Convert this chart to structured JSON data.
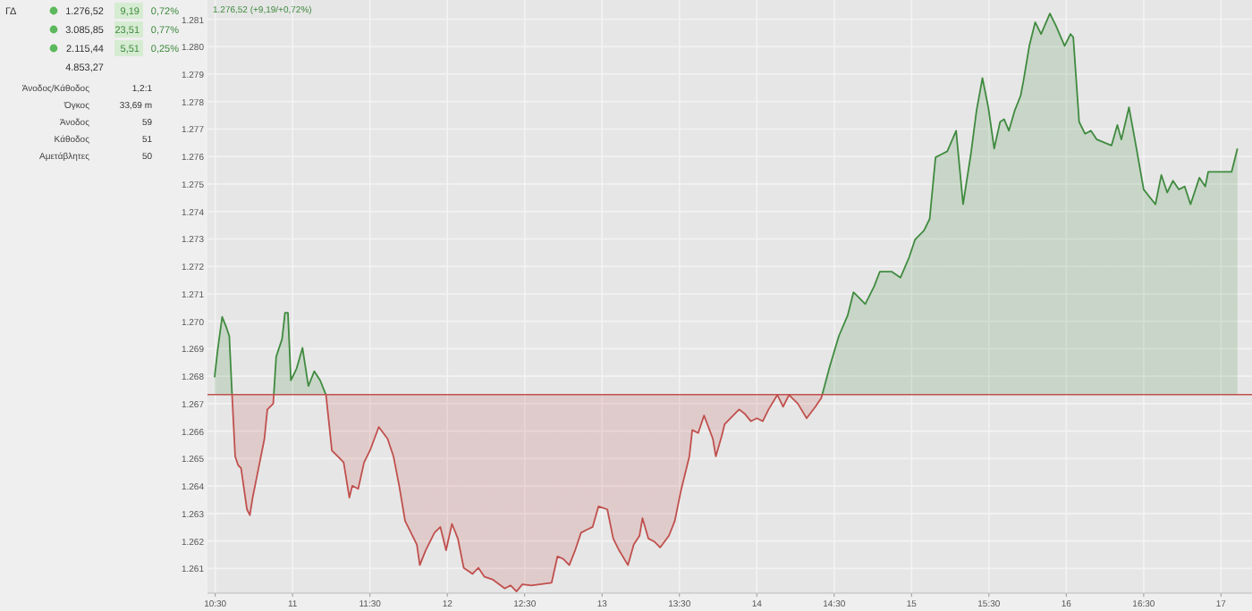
{
  "chart_data": [
    {
      "type": "other",
      "categories": [
        "ΓΔ",
        null,
        null,
        null
      ],
      "cell_labels": [
        [
          "1.276,52",
          "9,19",
          "0,72%"
        ],
        [
          "3.085,85",
          "23,51",
          "0,77%"
        ],
        [
          "2.115,44",
          "5,51",
          "0,25%"
        ],
        [
          "4.853,27"
        ]
      ]
    },
    {
      "type": "other",
      "categories": [
        "Άνοδος/Κάθοδος",
        "Όγκος",
        "Άνοδος",
        "Κάθοδος",
        "Αμετάβλητες"
      ],
      "cell_labels": [
        [
          "1,2:1"
        ],
        [
          "33,69 m"
        ],
        [
          "59"
        ],
        [
          "51"
        ],
        [
          "50"
        ]
      ]
    },
    {
      "type": "area",
      "title": "1.276,52 (+9,19/+0,72%)",
      "grid": true,
      "marker": "none",
      "x": [
        10.496,
        10.515,
        10.545,
        10.572,
        10.591,
        10.61,
        10.629,
        10.648,
        10.667,
        10.705,
        10.724,
        10.742,
        10.78,
        10.818,
        10.837,
        10.875,
        10.894,
        10.932,
        10.951,
        10.97,
        10.989,
        11.026,
        11.064,
        11.102,
        11.14,
        11.178,
        11.216,
        11.254,
        11.292,
        11.33,
        11.367,
        11.386,
        11.424,
        11.462,
        11.5,
        11.557,
        11.614,
        11.652,
        11.689,
        11.727,
        11.803,
        11.822,
        11.86,
        11.917,
        11.955,
        11.992,
        12.03,
        12.068,
        12.106,
        12.163,
        12.201,
        12.239,
        12.295,
        12.371,
        12.409,
        12.447,
        12.485,
        12.542,
        12.598,
        12.674,
        12.712,
        12.75,
        12.788,
        12.826,
        12.864,
        12.902,
        12.939,
        12.977,
        13.034,
        13.072,
        13.11,
        13.167,
        13.205,
        13.242,
        13.261,
        13.299,
        13.337,
        13.375,
        13.432,
        13.47,
        13.508,
        13.564,
        13.583,
        13.621,
        13.659,
        13.716,
        13.735,
        13.773,
        13.792,
        13.83,
        13.886,
        13.924,
        13.962,
        14.0,
        14.038,
        14.076,
        14.133,
        14.17,
        14.208,
        14.265,
        14.322,
        14.379,
        14.417,
        14.473,
        14.53,
        14.587,
        14.625,
        14.701,
        14.758,
        14.795,
        14.871,
        14.928,
        14.985,
        15.023,
        15.08,
        15.117,
        15.155,
        15.193,
        15.231,
        15.288,
        15.333,
        15.383,
        15.42,
        15.458,
        15.496,
        15.534,
        15.572,
        15.598,
        15.629,
        15.667,
        15.705,
        15.723,
        15.761,
        15.799,
        15.837,
        15.894,
        15.932,
        15.989,
        16.027,
        16.045,
        16.083,
        16.121,
        16.159,
        16.197,
        16.292,
        16.33,
        16.356,
        16.405,
        16.443,
        16.5,
        16.576,
        16.614,
        16.652,
        16.689,
        16.727,
        16.765,
        16.803,
        16.86,
        16.898,
        16.917,
        17.068,
        17.106
      ],
      "series": [
        {
          "color": "#3f8a3f",
          "values": [
            1267.96,
            1268.92,
            1270.16,
            1269.78,
            1269.46,
            1267.21,
            1265.08,
            1264.76,
            1264.65,
            1263.15,
            1262.94,
            1263.58,
            1264.65,
            1265.72,
            1266.79,
            1267.0,
            1268.71,
            1269.35,
            1270.31,
            1270.31,
            1267.85,
            1268.28,
            1269.03,
            1267.64,
            1268.18,
            1267.85,
            1267.32,
            1265.29,
            1265.08,
            1264.86,
            1263.58,
            1264.01,
            1263.9,
            1264.86,
            1265.29,
            1266.15,
            1265.72,
            1265.08,
            1264.01,
            1262.73,
            1261.87,
            1261.12,
            1261.66,
            1262.3,
            1262.51,
            1261.66,
            1262.62,
            1262.09,
            1261.02,
            1260.8,
            1261.02,
            1260.7,
            1260.59,
            1260.27,
            1260.38,
            1260.16,
            1260.42,
            1260.38,
            1260.42,
            1260.48,
            1261.44,
            1261.34,
            1261.12,
            1261.66,
            1262.3,
            1262.41,
            1262.51,
            1263.26,
            1263.15,
            1262.09,
            1261.66,
            1261.12,
            1261.87,
            1262.19,
            1262.83,
            1262.09,
            1261.98,
            1261.76,
            1262.19,
            1262.73,
            1263.79,
            1265.08,
            1266.04,
            1265.93,
            1266.57,
            1265.72,
            1265.08,
            1265.82,
            1266.25,
            1266.47,
            1266.79,
            1266.62,
            1266.36,
            1266.47,
            1266.36,
            1266.79,
            1267.32,
            1266.89,
            1267.32,
            1267.0,
            1266.47,
            1266.89,
            1267.21,
            1268.39,
            1269.46,
            1270.21,
            1271.06,
            1270.63,
            1271.27,
            1271.81,
            1271.81,
            1271.59,
            1272.34,
            1272.98,
            1273.3,
            1273.73,
            1275.97,
            1276.08,
            1276.19,
            1276.94,
            1274.26,
            1276.08,
            1277.68,
            1278.86,
            1277.79,
            1276.29,
            1277.26,
            1277.36,
            1276.94,
            1277.68,
            1278.22,
            1278.75,
            1280.03,
            1280.89,
            1280.46,
            1281.21,
            1280.78,
            1280.03,
            1280.46,
            1280.35,
            1277.26,
            1276.83,
            1276.94,
            1276.62,
            1276.4,
            1277.15,
            1276.62,
            1277.79,
            1276.62,
            1274.8,
            1274.26,
            1275.33,
            1274.69,
            1275.12,
            1274.8,
            1274.91,
            1274.26,
            1275.23,
            1274.91,
            1275.44,
            1275.44,
            1276.29
          ]
        }
      ],
      "ref_lines": [
        {
          "axis": "y",
          "value": 1267.33,
          "color": "#c0504d"
        }
      ],
      "xlim": [
        10.45,
        17.2
      ],
      "xticks": [
        {
          "value": 10.5,
          "label": "10:30"
        },
        11,
        {
          "value": 11.5,
          "label": "11:30"
        },
        12,
        {
          "value": 12.5,
          "label": "12:30"
        },
        13,
        {
          "value": 13.5,
          "label": "13:30"
        },
        14,
        {
          "value": 14.5,
          "label": "14:30"
        },
        15,
        {
          "value": 15.5,
          "label": "15:30"
        },
        16,
        {
          "value": 16.5,
          "label": "16:30"
        },
        17
      ],
      "ylim": [
        1260.1,
        1281.7
      ],
      "yticks": [
        {
          "value": 1261,
          "label": "1.261"
        },
        {
          "value": 1262,
          "label": "1.262"
        },
        {
          "value": 1263,
          "label": "1.263"
        },
        {
          "value": 1264,
          "label": "1.264"
        },
        {
          "value": 1265,
          "label": "1.265"
        },
        {
          "value": 1266,
          "label": "1.266"
        },
        {
          "value": 1267,
          "label": "1.267"
        },
        {
          "value": 1268,
          "label": "1.268"
        },
        {
          "value": 1269,
          "label": "1.269"
        },
        {
          "value": 1270,
          "label": "1.270"
        },
        {
          "value": 1271,
          "label": "1.271"
        },
        {
          "value": 1272,
          "label": "1.272"
        },
        {
          "value": 1273,
          "label": "1.273"
        },
        {
          "value": 1274,
          "label": "1.274"
        },
        {
          "value": 1275,
          "label": "1.275"
        },
        {
          "value": 1276,
          "label": "1.276"
        },
        {
          "value": 1277,
          "label": "1.277"
        },
        {
          "value": 1278,
          "label": "1.278"
        },
        {
          "value": 1279,
          "label": "1.279"
        },
        {
          "value": 1280,
          "label": "1.280"
        },
        {
          "value": 1281,
          "label": "1.281"
        }
      ]
    }
  ]
}
